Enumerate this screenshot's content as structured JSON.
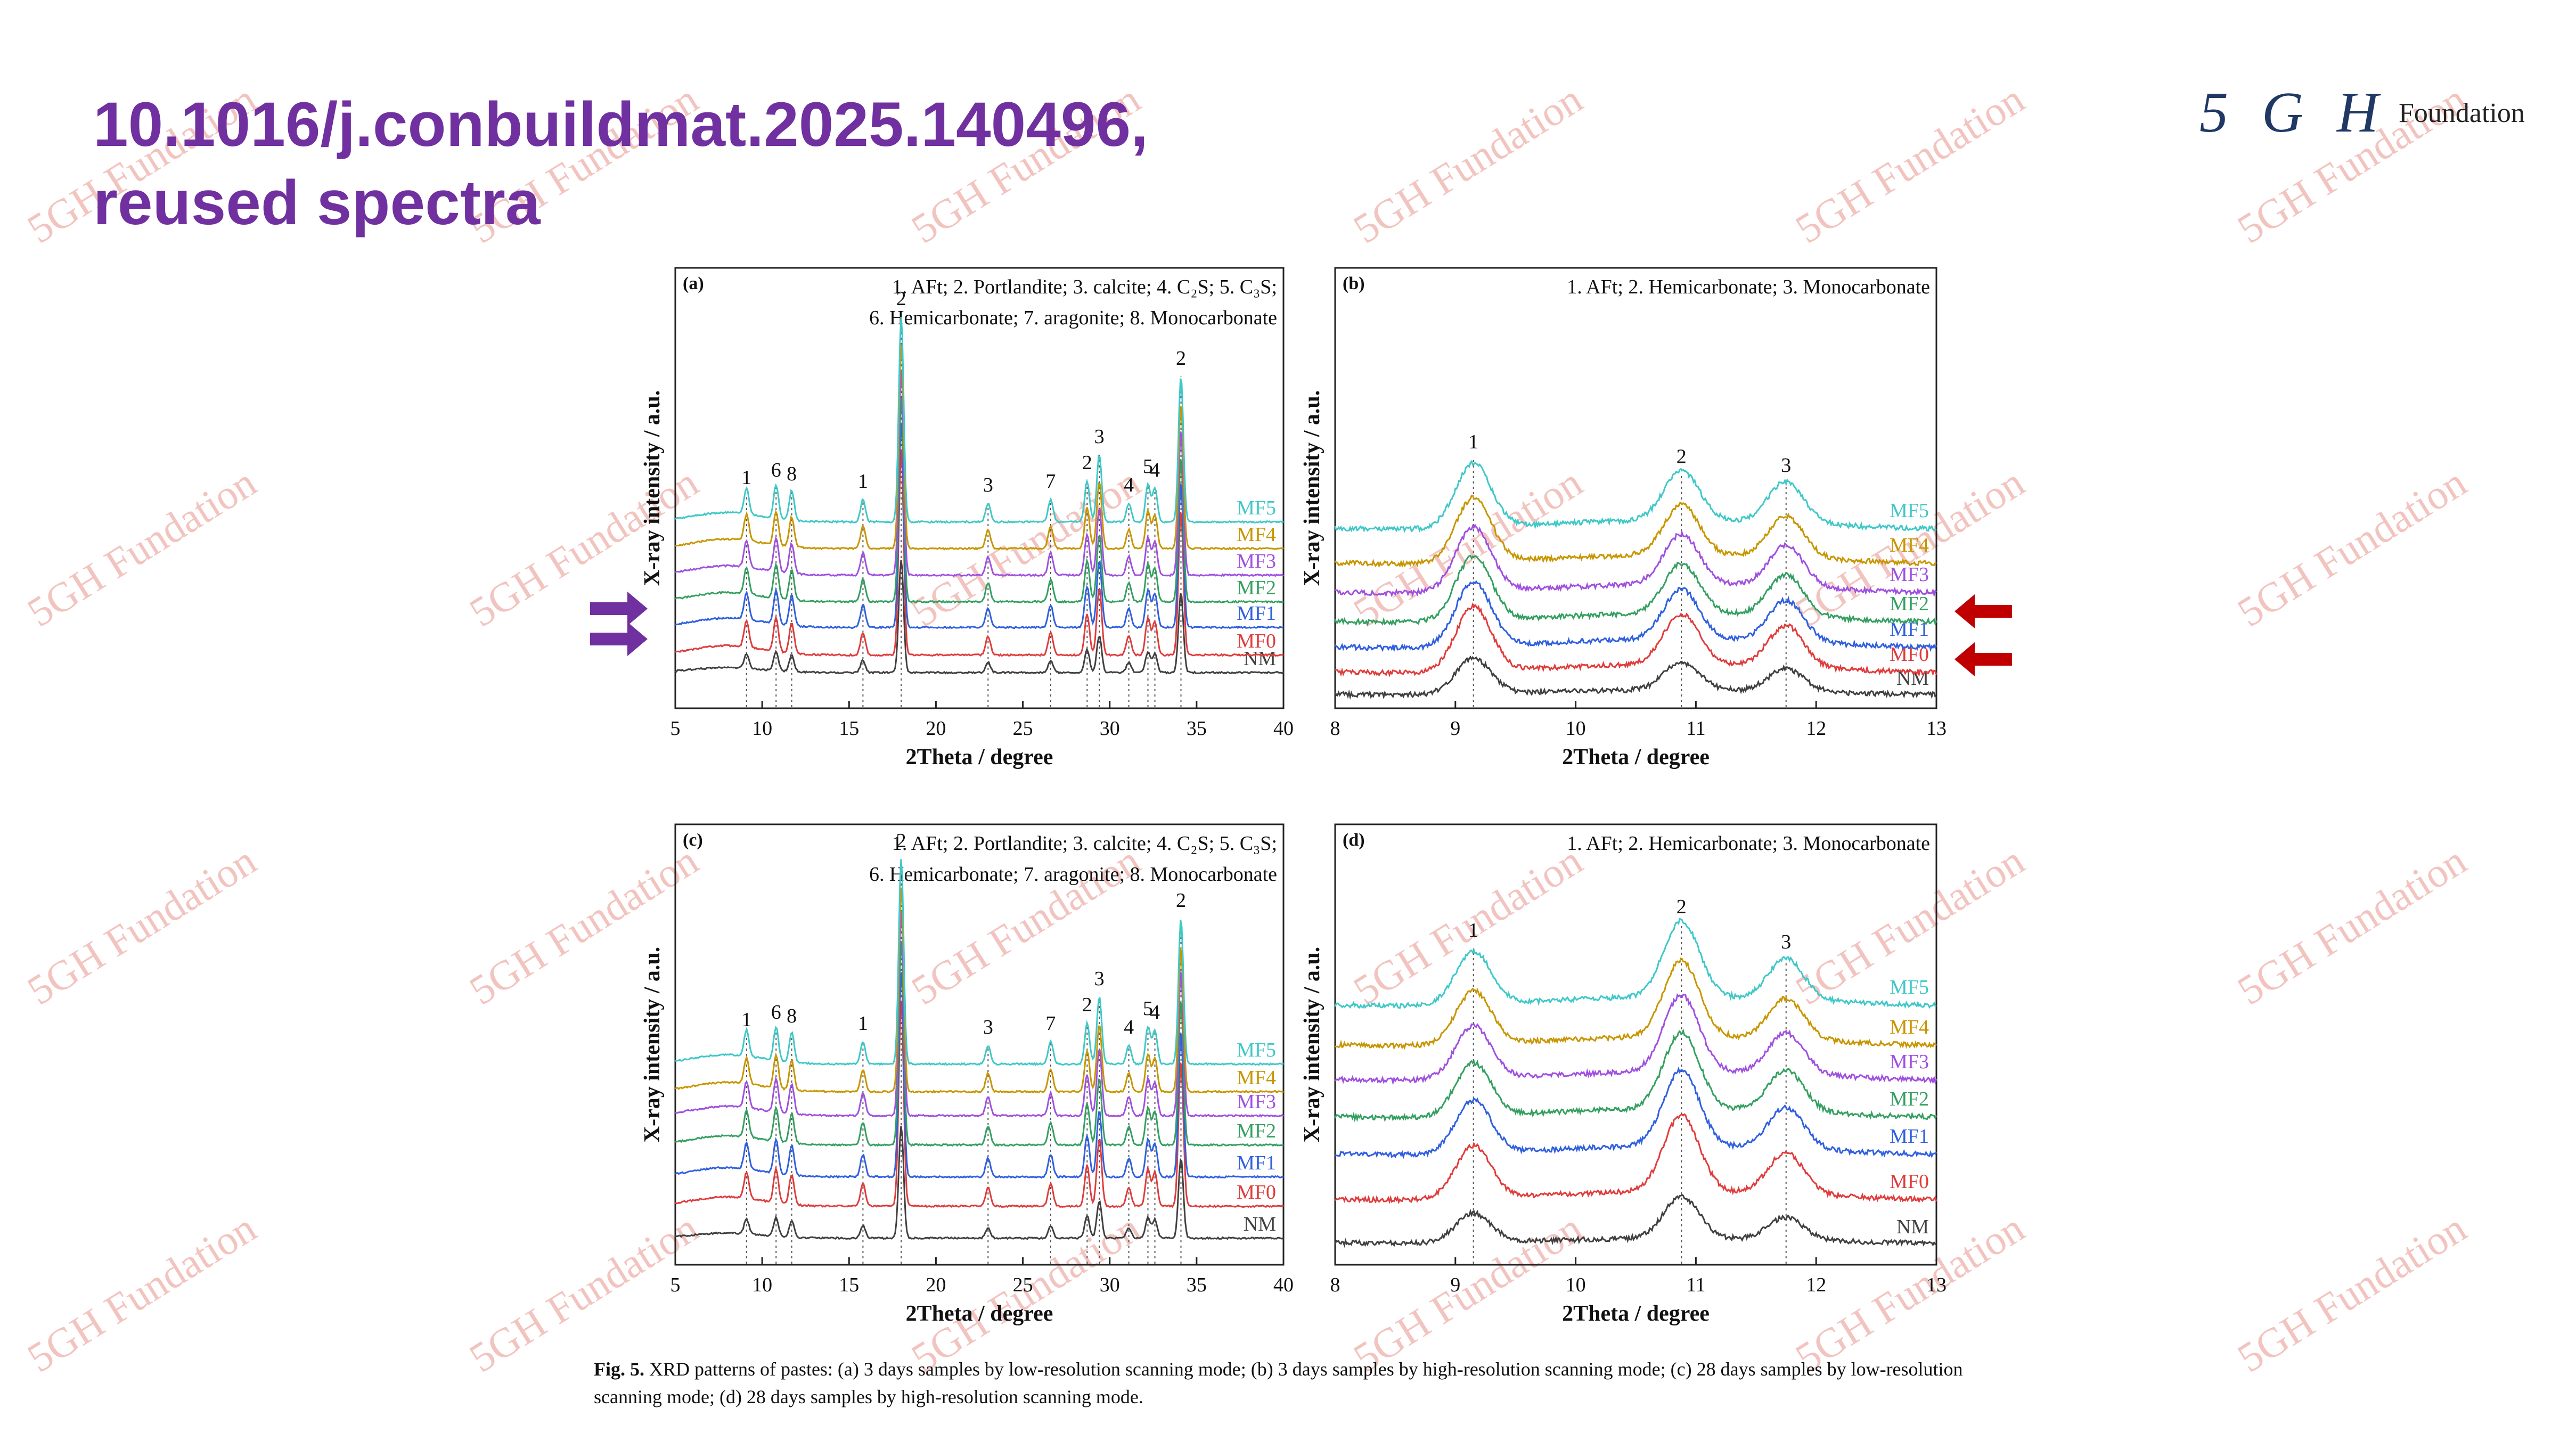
{
  "header": {
    "title_line1": "10.1016/j.conbuildmat.2025.140496,",
    "title_line2": "reused spectra",
    "title_color": "#7030a0"
  },
  "logo": {
    "mark": "5 G H",
    "word": "Foundation"
  },
  "watermark": {
    "text": "5GH Fundation",
    "color": "#f2c4c0"
  },
  "caption": {
    "label": "Fig. 5.",
    "text": "XRD patterns of pastes: (a) 3 days samples by low-resolution scanning mode; (b) 3 days samples by high-resolution scanning mode; (c) 28 days samples by low-resolution scanning mode; (d) 28 days samples by high-resolution scanning mode."
  },
  "arrows": {
    "left_color": "#7030a0",
    "right_color": "#c00000"
  },
  "chart_data": [
    {
      "id": "a",
      "panel_label": "(a)",
      "type": "line",
      "legend_lines": [
        "1. AFt; 2. Portlandite; 3. calcite; 4. C₂S; 5. C₃S;",
        "6. Hemicarbonate; 7. aragonite; 8. Monocarbonate"
      ],
      "xlabel": "2Theta / degree",
      "ylabel": "X-ray intensity / a.u.",
      "xlim": [
        5,
        40
      ],
      "xticks": [
        5,
        10,
        15,
        20,
        25,
        30,
        35,
        40
      ],
      "peaks": [
        {
          "x": 9.1,
          "label": "1",
          "h": 0.7
        },
        {
          "x": 10.8,
          "label": "6",
          "h": 0.9
        },
        {
          "x": 11.7,
          "label": "8",
          "h": 0.8
        },
        {
          "x": 15.8,
          "label": "1",
          "h": 0.6
        },
        {
          "x": 18.0,
          "label": "2",
          "h": 5.5
        },
        {
          "x": 23.0,
          "label": "3",
          "h": 0.5
        },
        {
          "x": 26.6,
          "label": "7",
          "h": 0.6
        },
        {
          "x": 28.7,
          "label": "2",
          "h": 1.1
        },
        {
          "x": 29.4,
          "label": "3",
          "h": 1.8
        },
        {
          "x": 31.1,
          "label": "4",
          "h": 0.5
        },
        {
          "x": 32.2,
          "label": "5",
          "h": 1.0
        },
        {
          "x": 32.6,
          "label": "4",
          "h": 0.9
        },
        {
          "x": 34.1,
          "label": "2",
          "h": 3.9
        }
      ],
      "series": [
        {
          "name": "NM",
          "color": "#404040"
        },
        {
          "name": "MF0",
          "color": "#e03c3c"
        },
        {
          "name": "MF1",
          "color": "#3060e0"
        },
        {
          "name": "MF2",
          "color": "#34a060"
        },
        {
          "name": "MF3",
          "color": "#a050e0"
        },
        {
          "name": "MF4",
          "color": "#c89600"
        },
        {
          "name": "MF5",
          "color": "#40c8c8"
        }
      ]
    },
    {
      "id": "b",
      "panel_label": "(b)",
      "type": "line",
      "legend_lines": [
        "1. AFt; 2. Hemicarbonate; 3. Monocarbonate"
      ],
      "xlabel": "2Theta / degree",
      "ylabel": "X-ray intensity / a.u.",
      "xlim": [
        8,
        13
      ],
      "xticks": [
        8,
        9,
        10,
        11,
        12,
        13
      ],
      "peaks": [
        {
          "x": 9.15,
          "label": "1",
          "h": 2.2
        },
        {
          "x": 10.88,
          "label": "2",
          "h": 1.7
        },
        {
          "x": 11.75,
          "label": "3",
          "h": 1.4
        }
      ],
      "series": [
        {
          "name": "NM",
          "color": "#404040"
        },
        {
          "name": "MF0",
          "color": "#e03c3c"
        },
        {
          "name": "MF1",
          "color": "#3060e0"
        },
        {
          "name": "MF2",
          "color": "#34a060"
        },
        {
          "name": "MF3",
          "color": "#a050e0"
        },
        {
          "name": "MF4",
          "color": "#c89600"
        },
        {
          "name": "MF5",
          "color": "#40c8c8"
        }
      ]
    },
    {
      "id": "c",
      "panel_label": "(c)",
      "type": "line",
      "legend_lines": [
        "1. AFt; 2. Portlandite; 3. calcite; 4. C₂S; 5. C₃S;",
        "6. Hemicarbonate; 7. aragonite; 8. Monocarbonate"
      ],
      "xlabel": "2Theta / degree",
      "ylabel": "X-ray intensity / a.u.",
      "xlim": [
        5,
        40
      ],
      "xticks": [
        5,
        10,
        15,
        20,
        25,
        30,
        35,
        40
      ],
      "peaks": [
        {
          "x": 9.1,
          "label": "1",
          "h": 0.7
        },
        {
          "x": 10.8,
          "label": "6",
          "h": 0.9
        },
        {
          "x": 11.7,
          "label": "8",
          "h": 0.8
        },
        {
          "x": 15.8,
          "label": "1",
          "h": 0.6
        },
        {
          "x": 18.0,
          "label": "2",
          "h": 5.5
        },
        {
          "x": 23.0,
          "label": "3",
          "h": 0.5
        },
        {
          "x": 26.6,
          "label": "7",
          "h": 0.6
        },
        {
          "x": 28.7,
          "label": "2",
          "h": 1.1
        },
        {
          "x": 29.4,
          "label": "3",
          "h": 1.8
        },
        {
          "x": 31.1,
          "label": "4",
          "h": 0.5
        },
        {
          "x": 32.2,
          "label": "5",
          "h": 1.0
        },
        {
          "x": 32.6,
          "label": "4",
          "h": 0.9
        },
        {
          "x": 34.1,
          "label": "2",
          "h": 3.9
        }
      ],
      "series": [
        {
          "name": "NM",
          "color": "#404040"
        },
        {
          "name": "MF0",
          "color": "#e03c3c"
        },
        {
          "name": "MF1",
          "color": "#3060e0"
        },
        {
          "name": "MF2",
          "color": "#34a060"
        },
        {
          "name": "MF3",
          "color": "#a050e0"
        },
        {
          "name": "MF4",
          "color": "#c89600"
        },
        {
          "name": "MF5",
          "color": "#40c8c8"
        }
      ]
    },
    {
      "id": "d",
      "panel_label": "(d)",
      "type": "line",
      "legend_lines": [
        "1. AFt; 2. Hemicarbonate; 3. Monocarbonate"
      ],
      "xlabel": "2Theta / degree",
      "ylabel": "X-ray intensity / a.u.",
      "xlim": [
        8,
        13
      ],
      "xticks": [
        8,
        9,
        10,
        11,
        12,
        13
      ],
      "peaks": [
        {
          "x": 9.15,
          "label": "1",
          "h": 1.8
        },
        {
          "x": 10.88,
          "label": "2",
          "h": 2.6
        },
        {
          "x": 11.75,
          "label": "3",
          "h": 1.4
        }
      ],
      "series": [
        {
          "name": "NM",
          "color": "#404040"
        },
        {
          "name": "MF0",
          "color": "#e03c3c"
        },
        {
          "name": "MF1",
          "color": "#3060e0"
        },
        {
          "name": "MF2",
          "color": "#34a060"
        },
        {
          "name": "MF3",
          "color": "#a050e0"
        },
        {
          "name": "MF4",
          "color": "#c89600"
        },
        {
          "name": "MF5",
          "color": "#40c8c8"
        }
      ]
    }
  ]
}
